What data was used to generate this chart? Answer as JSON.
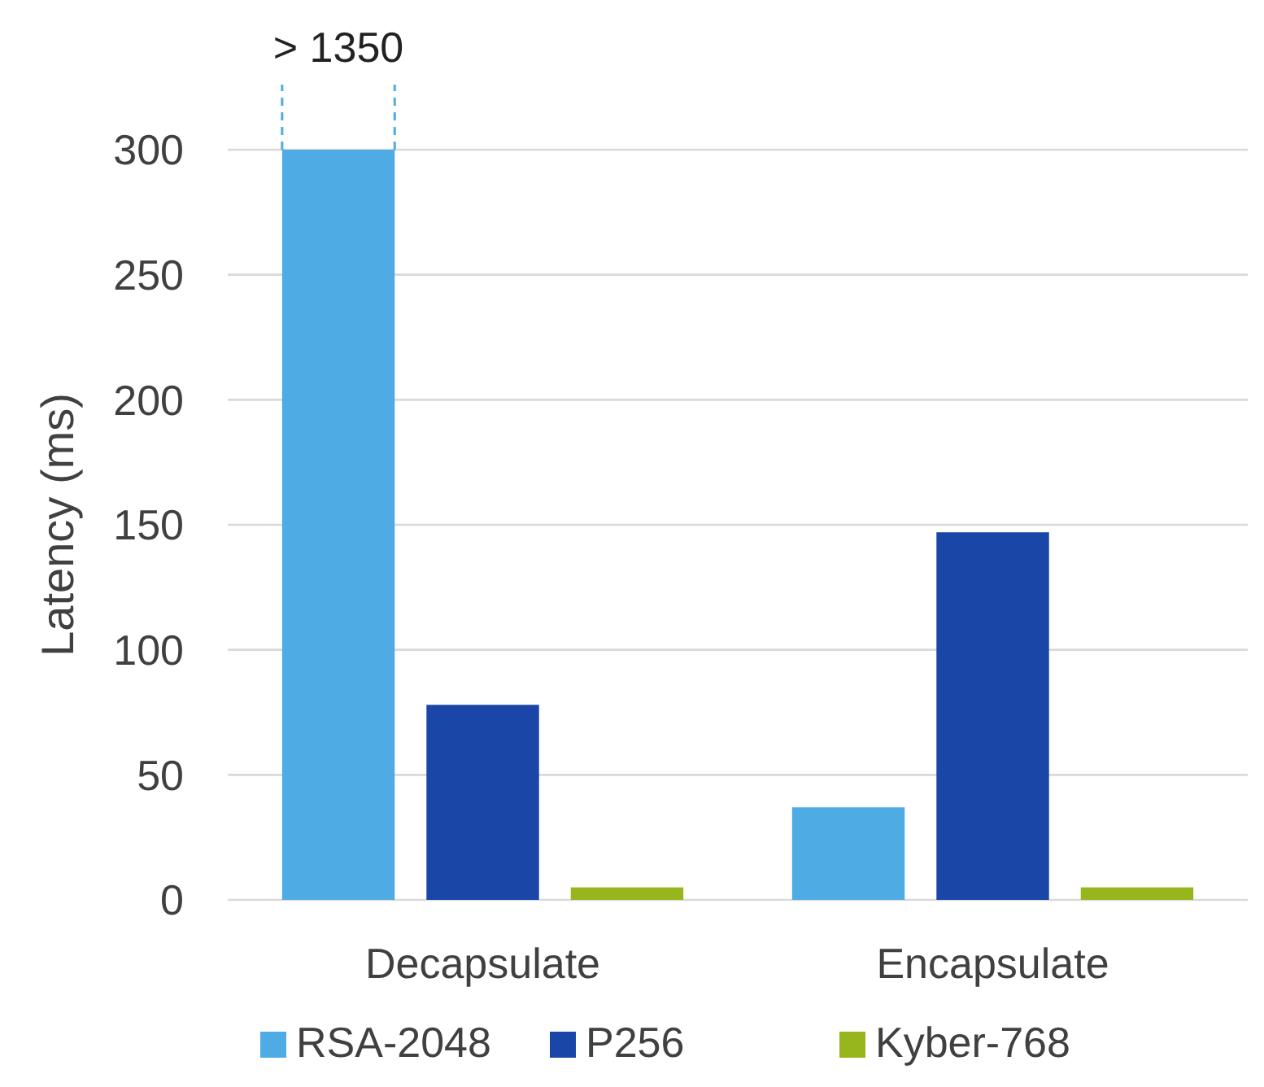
{
  "chart_data": {
    "type": "bar",
    "ylabel": "Latency (ms)",
    "categories": [
      "Decapsulate",
      "Encapsulate"
    ],
    "series": [
      {
        "name": "RSA-2048",
        "color": "#4eabe3",
        "values": [
          300,
          37
        ]
      },
      {
        "name": "P256",
        "color": "#1a46a8",
        "values": [
          78,
          147
        ]
      },
      {
        "name": "Kyber-768",
        "color": "#97b61e",
        "values": [
          5,
          5
        ]
      }
    ],
    "ylim": [
      0,
      300
    ],
    "yticks": [
      0,
      50,
      100,
      150,
      200,
      250,
      300
    ],
    "grid": "y",
    "legend": "bottom",
    "annotations": [
      "> 1350"
    ]
  }
}
